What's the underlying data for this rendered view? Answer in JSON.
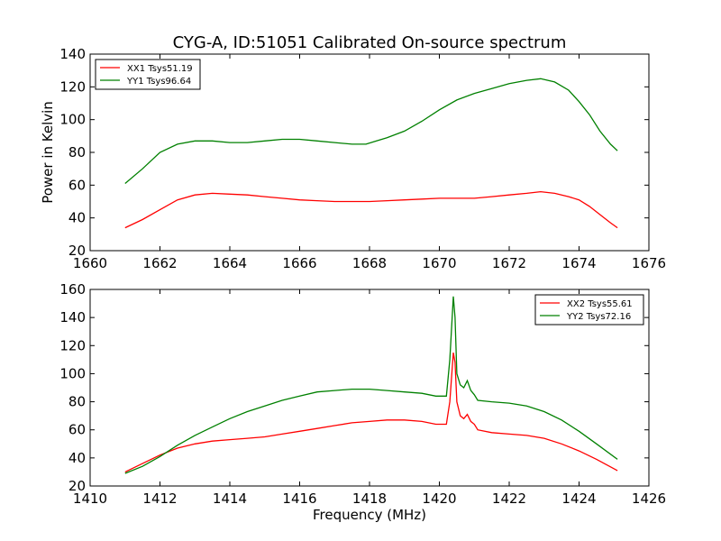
{
  "figure": {
    "title": "CYG-A, ID:51051 Calibrated On-source spectrum"
  },
  "chart_data": [
    {
      "type": "line",
      "title": "CYG-A, ID:51051 Calibrated On-source spectrum",
      "xlabel": "",
      "ylabel": "Power in Kelvin",
      "xlim": [
        1660,
        1676
      ],
      "ylim": [
        20,
        140
      ],
      "xticks": [
        "1660",
        "1662",
        "1664",
        "1666",
        "1668",
        "1670",
        "1672",
        "1674",
        "1676"
      ],
      "yticks": [
        "20",
        "40",
        "60",
        "80",
        "100",
        "120",
        "140"
      ],
      "legend_position": "top-left",
      "grid": false,
      "series": [
        {
          "name": "XX1 Tsys51.19",
          "color": "#ff0000",
          "x": [
            1661.0,
            1661.5,
            1662.0,
            1662.5,
            1663.0,
            1663.5,
            1664.0,
            1664.5,
            1665.0,
            1665.5,
            1666.0,
            1666.5,
            1667.0,
            1667.5,
            1668.0,
            1668.5,
            1669.0,
            1669.5,
            1670.0,
            1670.5,
            1671.0,
            1671.5,
            1672.0,
            1672.5,
            1672.9,
            1673.3,
            1673.7,
            1674.0,
            1674.3,
            1674.6,
            1674.9,
            1675.1
          ],
          "y": [
            34,
            39,
            45,
            51,
            54,
            55,
            54.5,
            54,
            53,
            52,
            51,
            50.5,
            50,
            50,
            50,
            50.5,
            51,
            51.5,
            52,
            52,
            52,
            53,
            54,
            55,
            56,
            55,
            53,
            51,
            47,
            42,
            37,
            34
          ]
        },
        {
          "name": "YY1 Tsys96.64",
          "color": "#008000",
          "x": [
            1661.0,
            1661.5,
            1662.0,
            1662.5,
            1663.0,
            1663.5,
            1664.0,
            1664.5,
            1665.0,
            1665.5,
            1666.0,
            1666.5,
            1667.0,
            1667.5,
            1667.9,
            1668.2,
            1668.5,
            1669.0,
            1669.5,
            1670.0,
            1670.5,
            1671.0,
            1671.5,
            1672.0,
            1672.5,
            1672.9,
            1673.3,
            1673.7,
            1674.0,
            1674.3,
            1674.6,
            1674.9,
            1675.1
          ],
          "y": [
            61,
            70,
            80,
            85,
            87,
            87,
            86,
            86,
            87,
            88,
            88,
            87,
            86,
            85,
            85,
            87,
            89,
            93,
            99,
            106,
            112,
            116,
            119,
            122,
            124,
            125,
            123,
            118,
            111,
            103,
            93,
            85,
            81
          ]
        }
      ]
    },
    {
      "type": "line",
      "title": "",
      "xlabel": "Frequency (MHz)",
      "ylabel": "",
      "xlim": [
        1410,
        1426
      ],
      "ylim": [
        20,
        160
      ],
      "xticks": [
        "1410",
        "1412",
        "1414",
        "1416",
        "1418",
        "1420",
        "1422",
        "1424",
        "1426"
      ],
      "yticks": [
        "20",
        "40",
        "60",
        "80",
        "100",
        "120",
        "140",
        "160"
      ],
      "legend_position": "top-right",
      "grid": false,
      "series": [
        {
          "name": "XX2 Tsys55.61",
          "color": "#ff0000",
          "x": [
            1411.0,
            1411.5,
            1412.0,
            1412.5,
            1413.0,
            1413.5,
            1414.0,
            1414.5,
            1415.0,
            1415.5,
            1416.0,
            1416.5,
            1417.0,
            1417.5,
            1418.0,
            1418.5,
            1419.0,
            1419.5,
            1419.9,
            1420.2,
            1420.3,
            1420.4,
            1420.45,
            1420.5,
            1420.6,
            1420.7,
            1420.8,
            1420.9,
            1421.0,
            1421.1,
            1421.5,
            1422.0,
            1422.5,
            1423.0,
            1423.5,
            1424.0,
            1424.5,
            1425.1
          ],
          "y": [
            30,
            36,
            42,
            47,
            50,
            52,
            53,
            54,
            55,
            57,
            59,
            61,
            63,
            65,
            66,
            67,
            67,
            66,
            64,
            64,
            80,
            115,
            108,
            80,
            70,
            68,
            71,
            66,
            64,
            60,
            58,
            57,
            56,
            54,
            50,
            45,
            39,
            31
          ]
        },
        {
          "name": "YY2 Tsys72.16",
          "color": "#008000",
          "x": [
            1411.0,
            1411.5,
            1412.0,
            1412.5,
            1413.0,
            1413.5,
            1414.0,
            1414.5,
            1415.0,
            1415.5,
            1416.0,
            1416.5,
            1417.0,
            1417.5,
            1418.0,
            1418.5,
            1419.0,
            1419.5,
            1419.9,
            1420.2,
            1420.3,
            1420.4,
            1420.45,
            1420.5,
            1420.6,
            1420.7,
            1420.8,
            1420.9,
            1421.0,
            1421.1,
            1421.5,
            1422.0,
            1422.5,
            1423.0,
            1423.5,
            1424.0,
            1424.5,
            1425.1
          ],
          "y": [
            29,
            34,
            41,
            49,
            56,
            62,
            68,
            73,
            77,
            81,
            84,
            87,
            88,
            89,
            89,
            88,
            87,
            86,
            84,
            84,
            110,
            155,
            140,
            100,
            92,
            90,
            95,
            88,
            85,
            81,
            80,
            79,
            77,
            73,
            67,
            59,
            50,
            39
          ]
        }
      ]
    }
  ]
}
